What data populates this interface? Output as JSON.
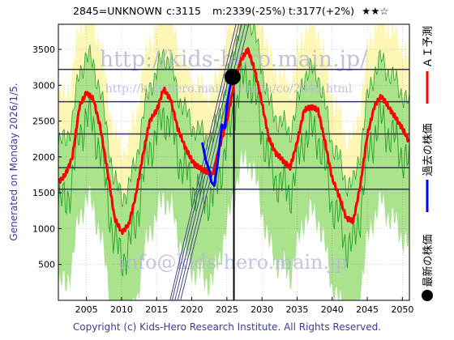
{
  "header": {
    "code": "2845=UNKNOWN",
    "current": "c:3115",
    "min": "m:2339(-25%)",
    "target": "t:3177(+2%)",
    "stars": "★★☆"
  },
  "side_label": "Generated on Monday 2026/1/5.",
  "copyright": "Copyright (c) Kids-Hero Research Institute. All Rights Reserved.",
  "watermarks": {
    "url": "http://kids-hero.main.jp/",
    "url_path": "http://kids-hero.main.jp/kabu/co/2845.html",
    "email": "info@kids-hero.main.jp"
  },
  "legend": {
    "ai_forecast": "ＡＩ予測",
    "past_price": "過去の株価",
    "latest_price": "最新の株価"
  },
  "colors": {
    "forecast": "#ff0000",
    "past": "#0000ff",
    "latest": "#000000",
    "band_yellow": "#fdf6b4",
    "band_green": "#a6e08a",
    "line_green": "#2ea82e",
    "hline": "#303070"
  },
  "chart_data": {
    "type": "line",
    "x_range": [
      2001,
      2051
    ],
    "y_range": [
      0,
      3850
    ],
    "x_ticks": [
      2005,
      2010,
      2015,
      2020,
      2025,
      2030,
      2035,
      2040,
      2045,
      2050
    ],
    "y_ticks": [
      500,
      1000,
      1500,
      2000,
      2500,
      3000,
      3500
    ],
    "grid": true,
    "horizontal_levels": [
      1550,
      1850,
      2320,
      2770,
      3220
    ],
    "vertical_marker_x": 2026.0,
    "latest_point": {
      "x": 2025.8,
      "y": 3115
    },
    "trend_lines": [
      {
        "x1": 2018.4,
        "y1": 0,
        "x2": 2028.1,
        "y2": 3850
      },
      {
        "x1": 2018.0,
        "y1": 0,
        "x2": 2027.6,
        "y2": 3850
      },
      {
        "x1": 2017.6,
        "y1": 0,
        "x2": 2027.1,
        "y2": 3850
      },
      {
        "x1": 2017.2,
        "y1": 0,
        "x2": 2026.7,
        "y2": 3850
      },
      {
        "x1": 2016.9,
        "y1": 0,
        "x2": 2026.3,
        "y2": 3850
      }
    ],
    "series": [
      {
        "name": "ＡＩ予測",
        "x": [
          2001,
          2002,
          2003,
          2004,
          2005,
          2006,
          2007,
          2008,
          2009,
          2010,
          2011,
          2012,
          2013,
          2014,
          2015,
          2016,
          2017,
          2018,
          2019,
          2020,
          2021,
          2022,
          2023,
          2024,
          2025,
          2026,
          2027,
          2028,
          2029,
          2030,
          2031,
          2032,
          2033,
          2034,
          2035,
          2036,
          2037,
          2038,
          2039,
          2040,
          2041,
          2042,
          2043,
          2044,
          2045,
          2046,
          2047,
          2048,
          2049,
          2050,
          2051
        ],
        "y": [
          1650,
          1750,
          2000,
          2700,
          2900,
          2800,
          2400,
          1800,
          1150,
          950,
          1050,
          1450,
          2000,
          2500,
          2650,
          2950,
          2800,
          2400,
          2150,
          1950,
          1850,
          1800,
          1750,
          2150,
          2500,
          3000,
          3350,
          3500,
          3200,
          2750,
          2250,
          2050,
          1950,
          1850,
          2200,
          2650,
          2700,
          2650,
          2200,
          1700,
          1450,
          1150,
          1100,
          1600,
          2300,
          2700,
          2850,
          2700,
          2550,
          2400,
          2200
        ]
      },
      {
        "name": "過去の株価",
        "x": [
          2021.5,
          2022.0,
          2022.4,
          2022.8,
          2023.2,
          2023.6,
          2024.0,
          2024.3,
          2024.7,
          2025.0,
          2025.4,
          2025.8
        ],
        "y": [
          2200,
          1950,
          1850,
          1650,
          1600,
          1850,
          2200,
          2450,
          2400,
          2700,
          2950,
          3115
        ]
      }
    ]
  }
}
